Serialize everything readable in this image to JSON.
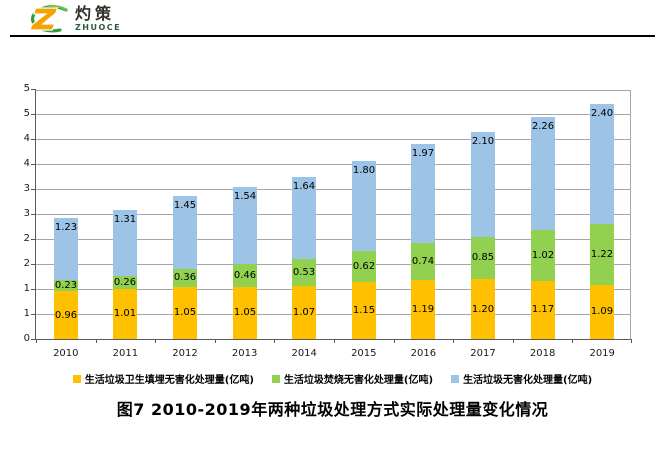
{
  "logo": {
    "brand_cn": "灼策",
    "brand_en": "ZHUOCE"
  },
  "title": "图7  2010-2019年两种垃圾处理方式实际处理量变化情况",
  "chart_data": {
    "type": "bar",
    "subtype": "stacked",
    "categories": [
      "2010",
      "2011",
      "2012",
      "2013",
      "2014",
      "2015",
      "2016",
      "2017",
      "2018",
      "2019"
    ],
    "series": [
      {
        "name": "生活垃圾卫生填埋无害化处理量(亿吨)",
        "color": "#FFC000",
        "label_position": "center",
        "values": [
          0.96,
          1.01,
          1.05,
          1.05,
          1.07,
          1.15,
          1.19,
          1.2,
          1.17,
          1.09
        ]
      },
      {
        "name": "生活垃圾焚烧无害化处理量(亿吨)",
        "color": "#92D050",
        "label_position": "center",
        "values": [
          0.23,
          0.26,
          0.36,
          0.46,
          0.53,
          0.62,
          0.74,
          0.85,
          1.02,
          1.22
        ]
      },
      {
        "name": "生活垃圾无害化处理量(亿吨)",
        "color": "#9DC3E6",
        "label_position": "inside-end",
        "values": [
          1.23,
          1.31,
          1.45,
          1.54,
          1.64,
          1.8,
          1.97,
          2.1,
          2.26,
          2.4
        ]
      }
    ],
    "ylabel": "",
    "xlabel": "",
    "ylim": [
      0,
      5
    ],
    "ytick_step": 0.5,
    "ytick_labels_bottom_to_top": [
      "0",
      "1",
      "1",
      "2",
      "2",
      "3",
      "3",
      "4",
      "4",
      "5",
      "5"
    ],
    "grid": true,
    "legend_position": "bottom",
    "value_label_decimals": 2
  }
}
